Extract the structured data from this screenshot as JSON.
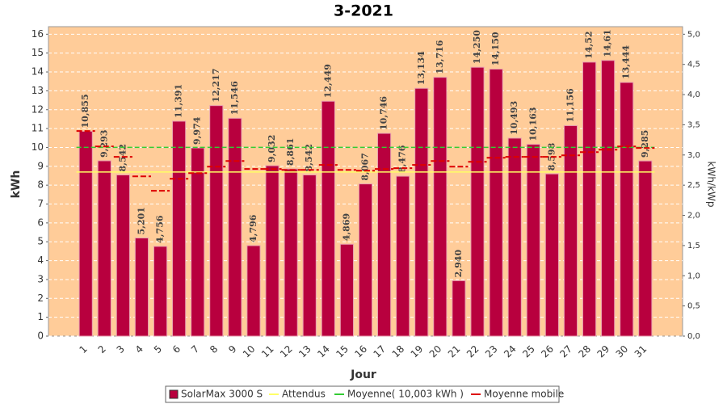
{
  "chart_data": {
    "type": "bar",
    "title": "3-2021",
    "x_label": "Jour",
    "y_label": "kWh",
    "y2_label": "kWh/kWp",
    "categories": [
      "1",
      "2",
      "3",
      "4",
      "5",
      "6",
      "7",
      "8",
      "9",
      "10",
      "11",
      "12",
      "13",
      "14",
      "15",
      "16",
      "17",
      "18",
      "19",
      "20",
      "21",
      "22",
      "23",
      "24",
      "25",
      "26",
      "27",
      "28",
      "29",
      "30",
      "31"
    ],
    "series": [
      {
        "name": "SolarMax 3000 S",
        "color": "#b8003e",
        "values": [
          10.855,
          9.293,
          8.542,
          5.201,
          4.756,
          11.391,
          9.974,
          12.217,
          11.546,
          4.796,
          9.032,
          8.861,
          8.542,
          12.449,
          4.869,
          8.067,
          10.746,
          8.476,
          13.134,
          13.716,
          2.94,
          14.25,
          14.15,
          10.493,
          10.163,
          8.598,
          11.156,
          14.52,
          14.61,
          13.444,
          9.285
        ],
        "value_labels": [
          "10,855",
          "9,293",
          "8,542",
          "5,201",
          "4,756",
          "11,391",
          "9,974",
          "12,217",
          "11,546",
          "4,796",
          "9,032",
          "8,861",
          "8,542",
          "12,449",
          "4,869",
          "8,067",
          "10,746",
          "8,476",
          "13,134",
          "13,716",
          "2,940",
          "14,250",
          "14,150",
          "10,493",
          "10,163",
          "8,598",
          "11,156",
          "14,52",
          "14,61",
          "13,444",
          "9,285"
        ]
      },
      {
        "name": "Attendus",
        "color": "#ffff66",
        "value": 8.7
      },
      {
        "name": "Moyenne( 10,003 kWh )",
        "color": "#33cc33",
        "value": 10.003
      },
      {
        "name": "Moyenne mobile",
        "color": "#dd0000",
        "values": [
          10.87,
          10.05,
          9.5,
          8.47,
          7.7,
          8.34,
          8.64,
          8.98,
          9.28,
          8.86,
          8.86,
          8.81,
          8.81,
          9.07,
          8.81,
          8.77,
          8.86,
          8.9,
          9.07,
          9.28,
          8.98,
          9.24,
          9.45,
          9.5,
          9.5,
          9.5,
          9.58,
          9.75,
          9.88,
          10.05,
          9.97
        ]
      }
    ],
    "ylim": [
      0,
      16.4
    ],
    "yticks": [
      0,
      1,
      2,
      3,
      4,
      5,
      6,
      7,
      8,
      9,
      10,
      11,
      12,
      13,
      14,
      15,
      16
    ],
    "y2lim": [
      0,
      5.125
    ],
    "y2ticks": [
      {
        "value": 0,
        "label": "0,0"
      },
      {
        "value": 0.5,
        "label": "0,5"
      },
      {
        "value": 1,
        "label": "1,0"
      },
      {
        "value": 1.5,
        "label": "1,5"
      },
      {
        "value": 2,
        "label": "2,0"
      },
      {
        "value": 2.5,
        "label": "2,5"
      },
      {
        "value": 3,
        "label": "3,0"
      },
      {
        "value": 3.5,
        "label": "3,5"
      },
      {
        "value": 4,
        "label": "4,0"
      },
      {
        "value": 4.5,
        "label": "4,5"
      },
      {
        "value": 5,
        "label": "5,0"
      }
    ],
    "grid": true,
    "legend": "bottom"
  }
}
